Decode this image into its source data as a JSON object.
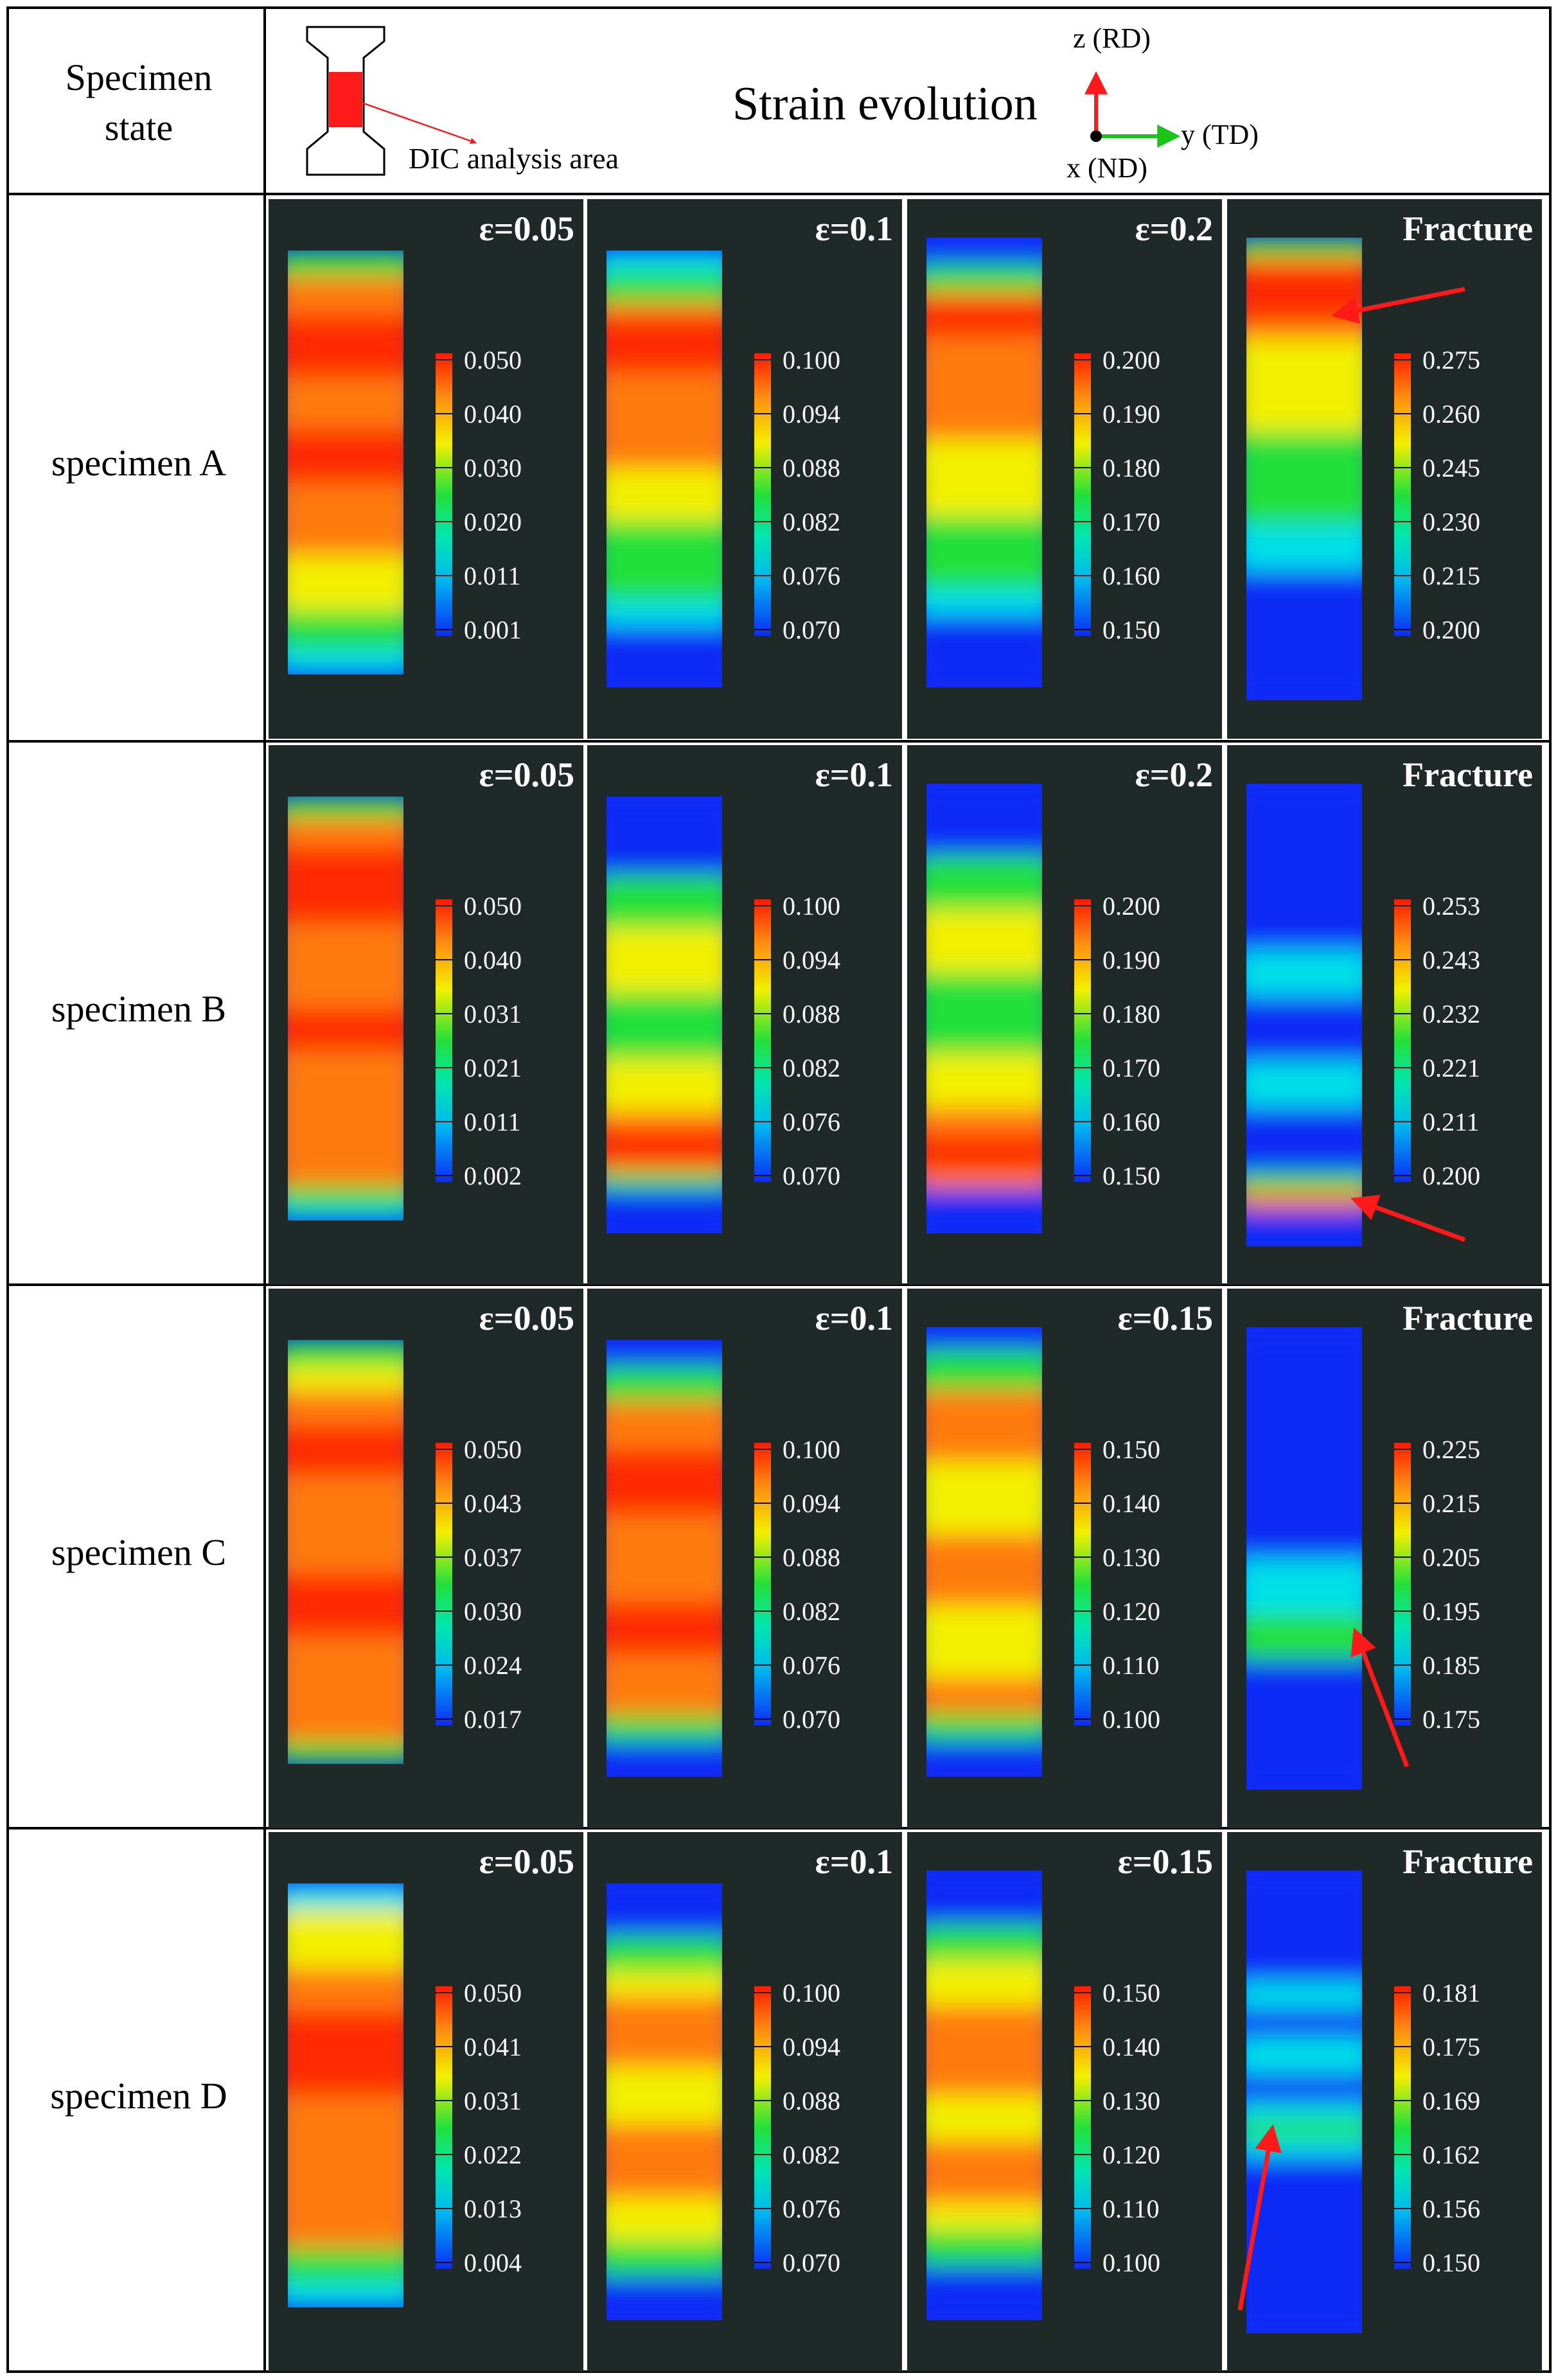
{
  "header": {
    "row_label_line1": "Specimen",
    "row_label_line2": "state",
    "title": "Strain evolution",
    "dic_label": "DIC analysis area",
    "axis_z": "z (RD)",
    "axis_y": "y (TD)",
    "axis_x": "x (ND)"
  },
  "rows": [
    {
      "label": "specimen A",
      "panels": [
        {
          "title": "ε=0.05",
          "ticks": [
            "0.050",
            "0.040",
            "0.030",
            "0.020",
            "0.011",
            "0.001"
          ],
          "pattern": "a1",
          "arrow": null
        },
        {
          "title": "ε=0.1",
          "ticks": [
            "0.100",
            "0.094",
            "0.088",
            "0.082",
            "0.076",
            "0.070"
          ],
          "pattern": "a2",
          "arrow": null
        },
        {
          "title": "ε=0.2",
          "ticks": [
            "0.200",
            "0.190",
            "0.180",
            "0.170",
            "0.160",
            "0.150"
          ],
          "pattern": "a3",
          "arrow": null
        },
        {
          "title": "Fracture",
          "ticks": [
            "0.275",
            "0.260",
            "0.245",
            "0.230",
            "0.215",
            "0.200"
          ],
          "pattern": "a4",
          "arrow": "top"
        }
      ]
    },
    {
      "label": "specimen B",
      "panels": [
        {
          "title": "ε=0.05",
          "ticks": [
            "0.050",
            "0.040",
            "0.031",
            "0.021",
            "0.011",
            "0.002"
          ],
          "pattern": "b1",
          "arrow": null
        },
        {
          "title": "ε=0.1",
          "ticks": [
            "0.100",
            "0.094",
            "0.088",
            "0.082",
            "0.076",
            "0.070"
          ],
          "pattern": "b2",
          "arrow": null
        },
        {
          "title": "ε=0.2",
          "ticks": [
            "0.200",
            "0.190",
            "0.180",
            "0.170",
            "0.160",
            "0.150"
          ],
          "pattern": "b3",
          "arrow": null
        },
        {
          "title": "Fracture",
          "ticks": [
            "0.253",
            "0.243",
            "0.232",
            "0.221",
            "0.211",
            "0.200"
          ],
          "pattern": "b4",
          "arrow": "bottom"
        }
      ]
    },
    {
      "label": "specimen C",
      "panels": [
        {
          "title": "ε=0.05",
          "ticks": [
            "0.050",
            "0.043",
            "0.037",
            "0.030",
            "0.024",
            "0.017"
          ],
          "pattern": "c1",
          "arrow": null
        },
        {
          "title": "ε=0.1",
          "ticks": [
            "0.100",
            "0.094",
            "0.088",
            "0.082",
            "0.076",
            "0.070"
          ],
          "pattern": "c2",
          "arrow": null
        },
        {
          "title": "ε=0.15",
          "ticks": [
            "0.150",
            "0.140",
            "0.130",
            "0.120",
            "0.110",
            "0.100"
          ],
          "pattern": "c3",
          "arrow": null
        },
        {
          "title": "Fracture",
          "ticks": [
            "0.225",
            "0.215",
            "0.205",
            "0.195",
            "0.185",
            "0.175"
          ],
          "pattern": "c4",
          "arrow": "right"
        }
      ]
    },
    {
      "label": "specimen D",
      "panels": [
        {
          "title": "ε=0.05",
          "ticks": [
            "0.050",
            "0.041",
            "0.031",
            "0.022",
            "0.013",
            "0.004"
          ],
          "pattern": "d1",
          "arrow": null
        },
        {
          "title": "ε=0.1",
          "ticks": [
            "0.100",
            "0.094",
            "0.088",
            "0.082",
            "0.076",
            "0.070"
          ],
          "pattern": "d2",
          "arrow": null
        },
        {
          "title": "ε=0.15",
          "ticks": [
            "0.150",
            "0.140",
            "0.130",
            "0.120",
            "0.110",
            "0.100"
          ],
          "pattern": "d3",
          "arrow": null
        },
        {
          "title": "Fracture",
          "ticks": [
            "0.181",
            "0.175",
            "0.169",
            "0.162",
            "0.156",
            "0.150"
          ],
          "pattern": "d4",
          "arrow": "left"
        }
      ]
    }
  ],
  "colors": {
    "panel_bg": "#1f2a28",
    "red": "#ff2a00",
    "orange": "#ff7a10",
    "yellow": "#f2f000",
    "green": "#22e03a",
    "cyan": "#00e0e8",
    "blue": "#0b2cf5"
  }
}
